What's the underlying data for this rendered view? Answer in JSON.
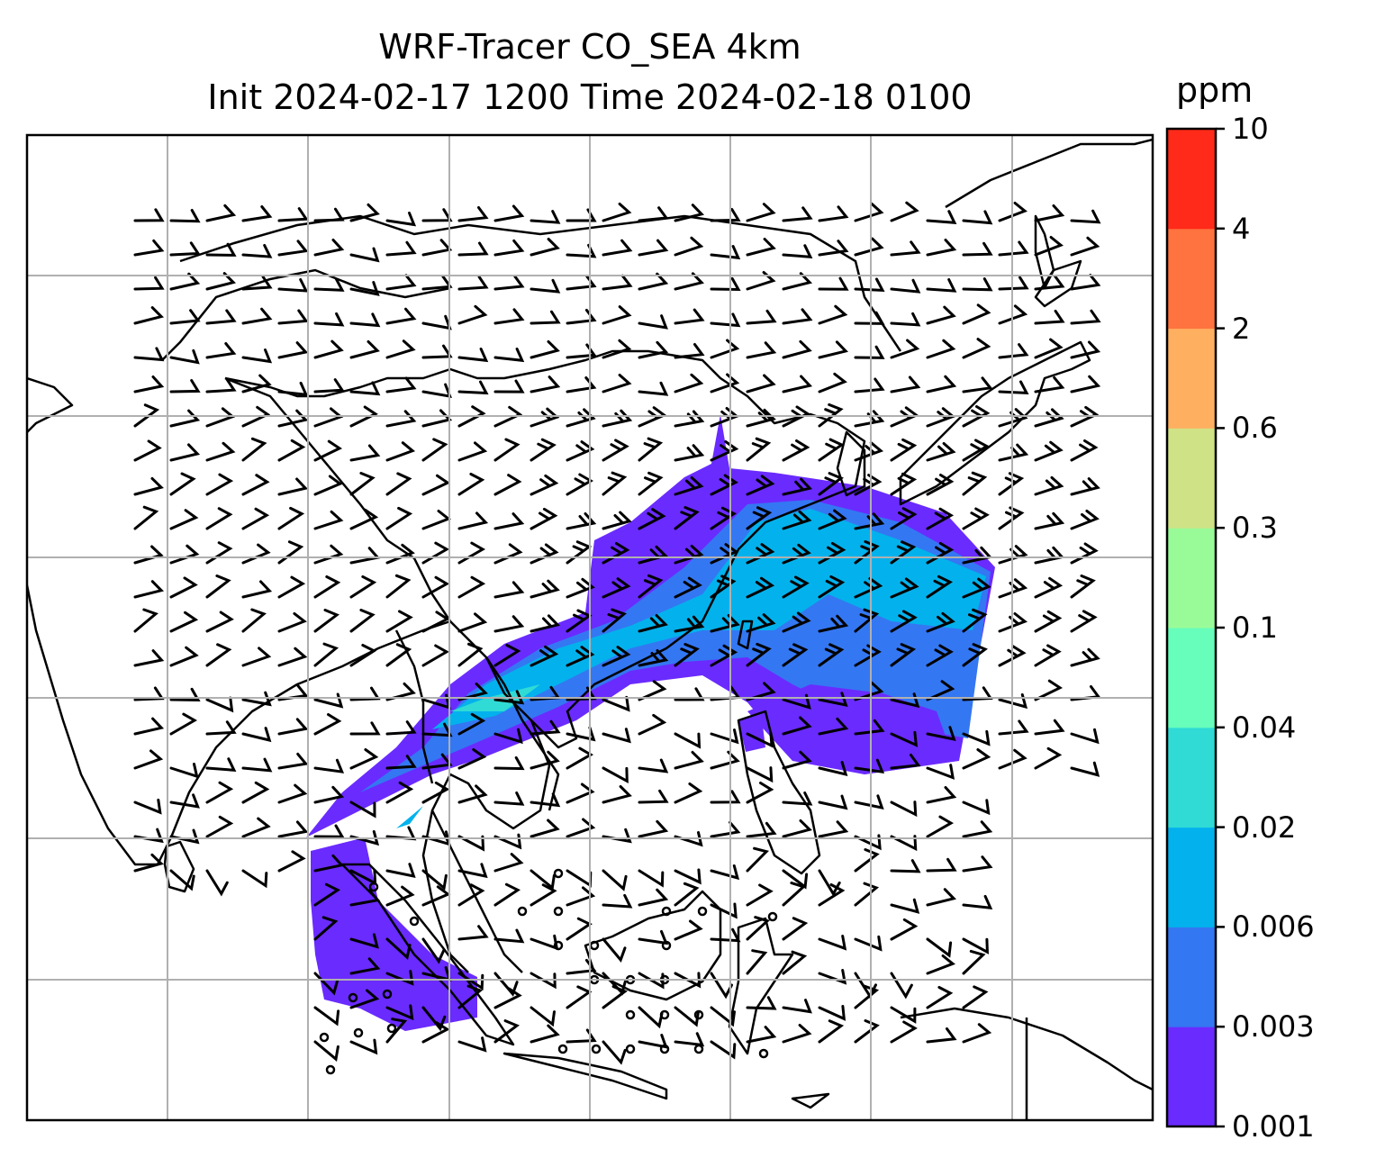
{
  "title": {
    "line1": "WRF-Tracer CO_SEA 4km",
    "line2": "Init 2024-02-17 1200 Time 2024-02-18 0100"
  },
  "colorbar": {
    "unit": "ppm",
    "ticks": [
      "0.001",
      "0.003",
      "0.006",
      "0.02",
      "0.04",
      "0.1",
      "0.3",
      "0.6",
      "2",
      "4",
      "10"
    ],
    "colors": [
      "#6a2bff",
      "#3477f2",
      "#03b2ec",
      "#30dbd5",
      "#67fdbb",
      "#99fb98",
      "#d0e286",
      "#feb060",
      "#fe733f",
      "#ff2a19"
    ]
  },
  "map": {
    "gridlines": true,
    "field_color_low": "#6a2bff",
    "field_color_mid": "#3477f2",
    "field_color_high": "#03b2ec",
    "plume_color_peak": "#30dbd5"
  }
}
